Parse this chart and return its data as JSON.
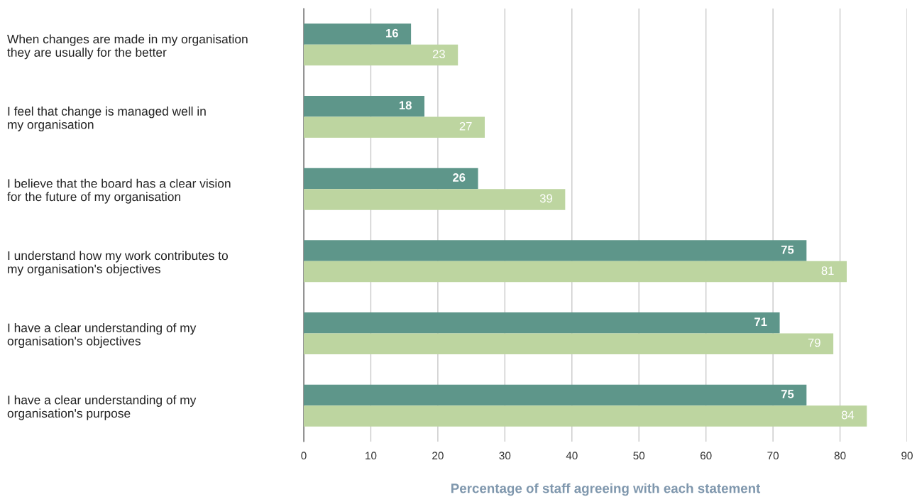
{
  "chart_data": {
    "type": "bar",
    "orientation": "horizontal",
    "categories": [
      "When changes are made in my organisation\nthey are usually for the better",
      "I feel that change is managed well in\nmy organisation",
      "I believe that the board has a clear vision\nfor the future of my organisation",
      "I understand how my work contributes to\nmy organisation's objectives",
      "I have a clear understanding of my\norganisation's objectives",
      "I have a clear understanding of my\norganisation's purpose"
    ],
    "series": [
      {
        "color": "#5e968a",
        "values": [
          16,
          18,
          26,
          75,
          71,
          75
        ]
      },
      {
        "color": "#bdd5a0",
        "values": [
          23,
          27,
          39,
          81,
          79,
          84
        ]
      }
    ],
    "xlabel": "Percentage of staff agreeing with each statement",
    "xlim": [
      0,
      90
    ],
    "xticks": [
      0,
      10,
      20,
      30,
      40,
      50,
      60,
      70,
      80,
      90
    ],
    "grid": "x",
    "data_labels": true,
    "legend": false
  }
}
